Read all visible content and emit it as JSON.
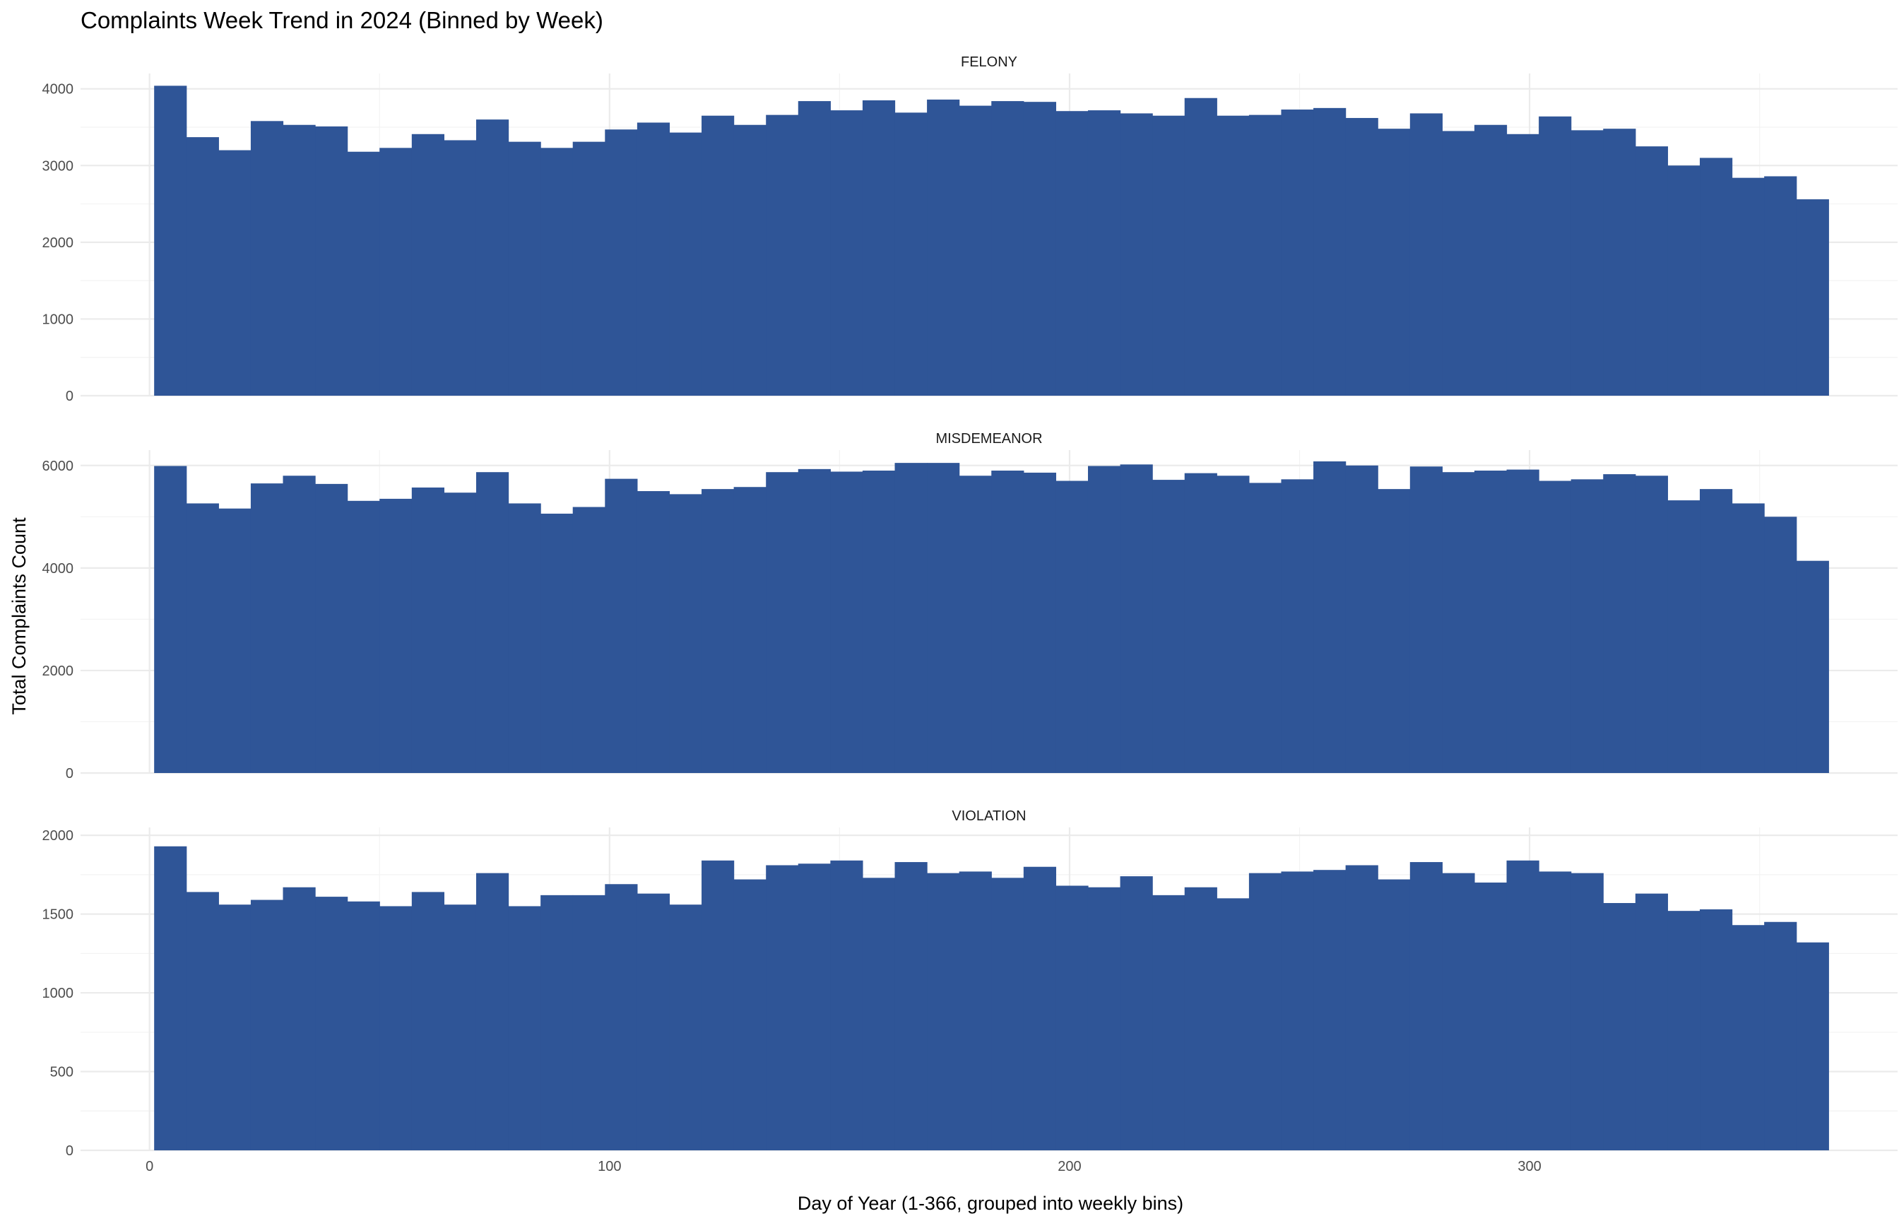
{
  "chart_data": {
    "type": "bar",
    "title": "Complaints Week Trend in 2024 (Binned by Week)",
    "xlabel": "Day of Year (1-366, grouped into weekly bins)",
    "ylabel": "Total Complaints Count",
    "bar_color": "#2f5597",
    "grid": true,
    "xlim": [
      -15,
      380
    ],
    "x_ticks": [
      0,
      100,
      200,
      300
    ],
    "bin_width": 7,
    "bin_start": 1,
    "panels": [
      {
        "name": "FELONY",
        "ylim": [
          0,
          4200
        ],
        "y_ticks": [
          0,
          1000,
          2000,
          3000,
          4000
        ],
        "values": [
          4040,
          3370,
          3200,
          3580,
          3530,
          3510,
          3180,
          3230,
          3410,
          3330,
          3600,
          3310,
          3230,
          3310,
          3470,
          3560,
          3430,
          3650,
          3530,
          3660,
          3840,
          3720,
          3850,
          3690,
          3860,
          3780,
          3840,
          3830,
          3710,
          3720,
          3680,
          3650,
          3880,
          3650,
          3660,
          3730,
          3750,
          3620,
          3480,
          3680,
          3450,
          3530,
          3410,
          3640,
          3460,
          3480,
          3250,
          3000,
          3100,
          2840,
          2860,
          2560
        ]
      },
      {
        "name": "MISDEMEANOR",
        "ylim": [
          0,
          6300
        ],
        "y_ticks": [
          0,
          2000,
          4000,
          6000
        ],
        "values": [
          5990,
          5260,
          5160,
          5650,
          5800,
          5640,
          5310,
          5350,
          5570,
          5470,
          5870,
          5260,
          5060,
          5190,
          5740,
          5500,
          5440,
          5540,
          5580,
          5870,
          5930,
          5880,
          5900,
          6050,
          6050,
          5800,
          5900,
          5860,
          5700,
          5990,
          6020,
          5720,
          5850,
          5800,
          5660,
          5730,
          6080,
          6000,
          5540,
          5980,
          5870,
          5900,
          5920,
          5700,
          5730,
          5830,
          5800,
          5320,
          5540,
          5260,
          5000,
          4140
        ]
      },
      {
        "name": "VIOLATION",
        "ylim": [
          0,
          2050
        ],
        "y_ticks": [
          0,
          500,
          1000,
          1500,
          2000
        ],
        "values": [
          1930,
          1640,
          1560,
          1590,
          1670,
          1610,
          1580,
          1550,
          1640,
          1560,
          1760,
          1550,
          1620,
          1620,
          1690,
          1630,
          1560,
          1840,
          1720,
          1810,
          1820,
          1840,
          1730,
          1830,
          1760,
          1770,
          1730,
          1800,
          1680,
          1670,
          1740,
          1620,
          1670,
          1600,
          1760,
          1770,
          1780,
          1810,
          1720,
          1830,
          1760,
          1700,
          1840,
          1770,
          1760,
          1570,
          1630,
          1520,
          1530,
          1430,
          1450,
          1320
        ]
      }
    ]
  }
}
